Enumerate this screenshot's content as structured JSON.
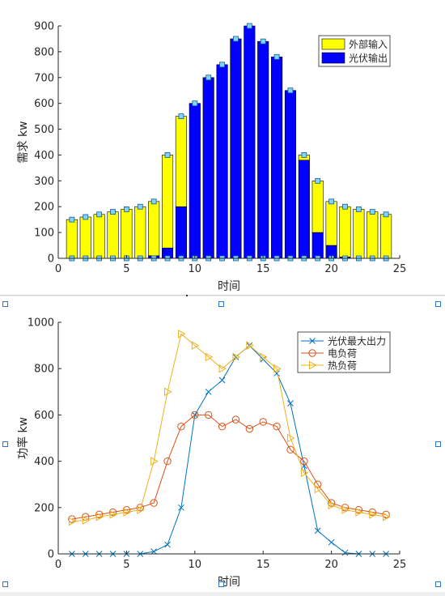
{
  "chart_data": [
    {
      "type": "bar",
      "stacked": true,
      "title": "",
      "xlabel": "时间",
      "ylabel": "需求 kw",
      "xlim": [
        0,
        25
      ],
      "ylim": [
        0,
        900
      ],
      "xticks": [
        0,
        5,
        10,
        15,
        20,
        25
      ],
      "yticks": [
        0,
        100,
        200,
        300,
        400,
        500,
        600,
        700,
        800,
        900
      ],
      "legend_position": "top-right",
      "categories": [
        1,
        2,
        3,
        4,
        5,
        6,
        7,
        8,
        9,
        10,
        11,
        12,
        13,
        14,
        15,
        16,
        17,
        18,
        19,
        20,
        21,
        22,
        23,
        24
      ],
      "series": [
        {
          "name": "外部输入",
          "color": "#ffff00",
          "values": [
            150,
            160,
            170,
            180,
            190,
            200,
            210,
            360,
            350,
            0,
            0,
            0,
            0,
            0,
            0,
            0,
            0,
            20,
            200,
            170,
            195,
            190,
            180,
            170
          ]
        },
        {
          "name": "光伏输出",
          "color": "#0000ff",
          "values": [
            0,
            0,
            0,
            0,
            0,
            0,
            10,
            40,
            200,
            600,
            700,
            750,
            850,
            900,
            840,
            780,
            650,
            380,
            100,
            50,
            5,
            0,
            0,
            0
          ]
        }
      ],
      "marker_color": "#7fd4ff"
    },
    {
      "type": "line",
      "title": "",
      "xlabel": "时间",
      "ylabel": "功率 kw",
      "xlim": [
        0,
        25
      ],
      "ylim": [
        0,
        1000
      ],
      "xticks": [
        0,
        5,
        10,
        15,
        20,
        25
      ],
      "yticks": [
        0,
        200,
        400,
        600,
        800,
        1000
      ],
      "legend_position": "top-right",
      "x": [
        1,
        2,
        3,
        4,
        5,
        6,
        7,
        8,
        9,
        10,
        11,
        12,
        13,
        14,
        15,
        16,
        17,
        18,
        19,
        20,
        21,
        22,
        23,
        24
      ],
      "series": [
        {
          "name": "光伏最大出力",
          "color": "#0072bd",
          "marker": "x",
          "values": [
            0,
            0,
            0,
            0,
            0,
            0,
            10,
            40,
            200,
            600,
            700,
            750,
            850,
            900,
            840,
            780,
            650,
            380,
            100,
            50,
            5,
            0,
            0,
            0
          ]
        },
        {
          "name": "电负荷",
          "color": "#d95319",
          "marker": "o",
          "values": [
            150,
            160,
            170,
            180,
            190,
            200,
            220,
            400,
            550,
            600,
            600,
            550,
            580,
            540,
            570,
            550,
            450,
            400,
            300,
            220,
            200,
            190,
            180,
            170
          ]
        },
        {
          "name": "热负荷",
          "color": "#edb120",
          "marker": "triangle-right",
          "values": [
            140,
            145,
            160,
            170,
            180,
            190,
            400,
            700,
            950,
            900,
            850,
            800,
            850,
            900,
            850,
            800,
            500,
            350,
            280,
            210,
            190,
            180,
            170,
            160
          ]
        }
      ]
    }
  ]
}
